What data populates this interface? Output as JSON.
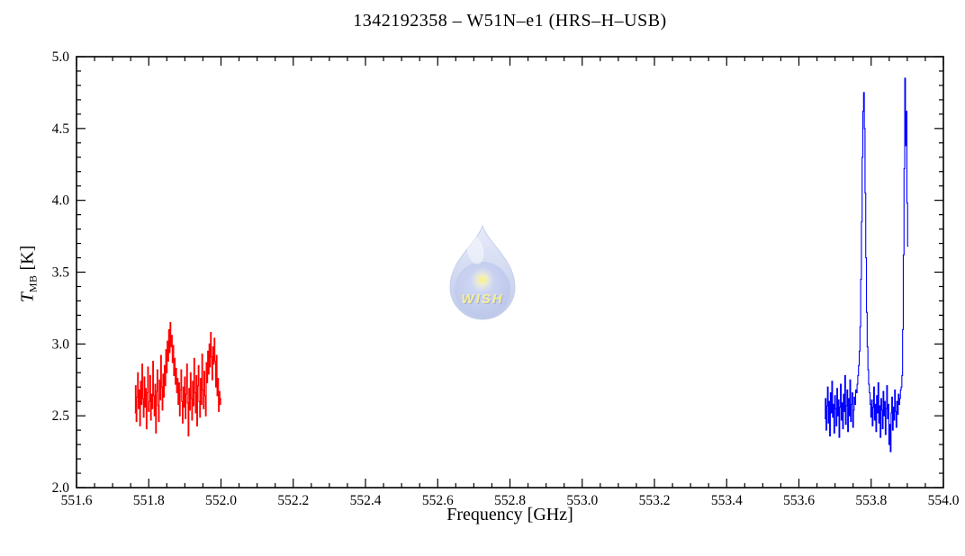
{
  "figure": {
    "background": "#ffffff",
    "axis_color": "#000000"
  },
  "watermark": {
    "label": "WISH",
    "star_glyph": "✶",
    "drop_color_top": "#d3ddf6",
    "drop_color_bottom": "#8d9ed9",
    "core_color": "#8093d4",
    "text_color": "#f2e43c",
    "shadow_color": "#5f6fb4"
  },
  "chart_data": {
    "type": "line",
    "title": "1342192358 – W51N–e1 (HRS–H–USB)",
    "xlabel": "Frequency [GHz]",
    "ylabel_main": "T",
    "ylabel_sub": "MB",
    "ylabel_unit": " [K]",
    "xlim": [
      551.6,
      554.0
    ],
    "ylim": [
      2.0,
      5.0
    ],
    "grid": false,
    "legend": "none",
    "x_major_step": 0.2,
    "x_minor_step": 0.05,
    "y_major_step": 0.5,
    "y_minor_step": 0.1,
    "x_tick_labels": [
      "551.6",
      "551.8",
      "552.0",
      "552.2",
      "552.4",
      "552.6",
      "552.8",
      "553.0",
      "553.2",
      "553.4",
      "553.6",
      "553.8",
      "554.0"
    ],
    "x_tick_values": [
      551.6,
      551.8,
      552.0,
      552.2,
      552.4,
      552.6,
      552.8,
      553.0,
      553.2,
      553.4,
      553.6,
      553.8,
      554.0
    ],
    "y_tick_labels": [
      "2.0",
      "2.5",
      "3.0",
      "3.5",
      "4.0",
      "4.5",
      "5.0"
    ],
    "y_tick_values": [
      2.0,
      2.5,
      3.0,
      3.5,
      4.0,
      4.5,
      5.0
    ],
    "peaks": [
      {
        "frequency_ghz": 553.78,
        "t_mb_k": 4.75
      },
      {
        "frequency_ghz": 553.89,
        "t_mb_k": 4.85
      }
    ],
    "series": [
      {
        "name": "segment-red",
        "color": "#ff0000",
        "style": "histogram-steps",
        "x_start": 551.762,
        "x_step": 0.002,
        "values": [
          2.52,
          2.71,
          2.46,
          2.63,
          2.8,
          2.55,
          2.68,
          2.43,
          2.74,
          2.58,
          2.86,
          2.62,
          2.49,
          2.77,
          2.56,
          2.69,
          2.41,
          2.66,
          2.84,
          2.53,
          2.6,
          2.78,
          2.47,
          2.65,
          2.55,
          2.88,
          2.64,
          2.5,
          2.72,
          2.38,
          2.67,
          2.82,
          2.57,
          2.46,
          2.75,
          2.61,
          2.92,
          2.7,
          2.54,
          2.79,
          2.63,
          2.85,
          2.71,
          2.96,
          2.8,
          3.02,
          2.88,
          3.1,
          2.94,
          3.15,
          2.98,
          3.06,
          2.87,
          2.99,
          2.78,
          2.9,
          2.72,
          2.83,
          2.66,
          2.76,
          2.58,
          2.73,
          2.5,
          2.68,
          2.82,
          2.6,
          2.45,
          2.7,
          2.56,
          2.77,
          2.48,
          2.65,
          2.86,
          2.59,
          2.36,
          2.69,
          2.54,
          2.8,
          2.62,
          2.47,
          2.74,
          2.57,
          2.9,
          2.66,
          2.52,
          2.78,
          2.43,
          2.71,
          2.85,
          2.6,
          2.49,
          2.76,
          2.58,
          2.93,
          2.68,
          2.55,
          2.81,
          2.64,
          2.5,
          2.87,
          2.73,
          2.95,
          2.79,
          3.0,
          2.84,
          3.08,
          2.91,
          2.75,
          2.98,
          2.86,
          3.04,
          2.88,
          2.7,
          2.92,
          2.64,
          2.76,
          2.53,
          2.67,
          2.58,
          2.62
        ]
      },
      {
        "name": "segment-blue",
        "color": "#0000ff",
        "style": "histogram-steps",
        "x_start": 553.672,
        "x_step": 0.002,
        "values": [
          2.48,
          2.62,
          2.4,
          2.57,
          2.7,
          2.45,
          2.6,
          2.36,
          2.66,
          2.52,
          2.74,
          2.49,
          2.58,
          2.38,
          2.64,
          2.55,
          2.43,
          2.69,
          2.5,
          2.61,
          2.35,
          2.56,
          2.72,
          2.47,
          2.59,
          2.41,
          2.65,
          2.53,
          2.78,
          2.44,
          2.57,
          2.68,
          2.39,
          2.62,
          2.5,
          2.75,
          2.46,
          2.58,
          2.66,
          2.42,
          2.54,
          2.63,
          2.58,
          2.68,
          2.66,
          2.72,
          2.78,
          2.85,
          2.95,
          3.12,
          3.45,
          3.85,
          4.3,
          4.62,
          4.75,
          4.5,
          4.05,
          3.6,
          3.22,
          2.98,
          2.82,
          2.72,
          2.66,
          2.58,
          2.49,
          2.61,
          2.43,
          2.56,
          2.7,
          2.47,
          2.58,
          2.39,
          2.64,
          2.52,
          2.73,
          2.45,
          2.57,
          2.35,
          2.62,
          2.54,
          2.41,
          2.67,
          2.5,
          2.6,
          2.37,
          2.55,
          2.71,
          2.48,
          2.58,
          2.3,
          2.44,
          2.25,
          2.52,
          2.63,
          2.4,
          2.56,
          2.47,
          2.68,
          2.53,
          2.42,
          2.6,
          2.51,
          2.65,
          2.58,
          2.62,
          2.68,
          2.7,
          2.78,
          3.1,
          3.62,
          4.22,
          4.85,
          4.38,
          4.62,
          3.98,
          3.68
        ]
      }
    ]
  }
}
